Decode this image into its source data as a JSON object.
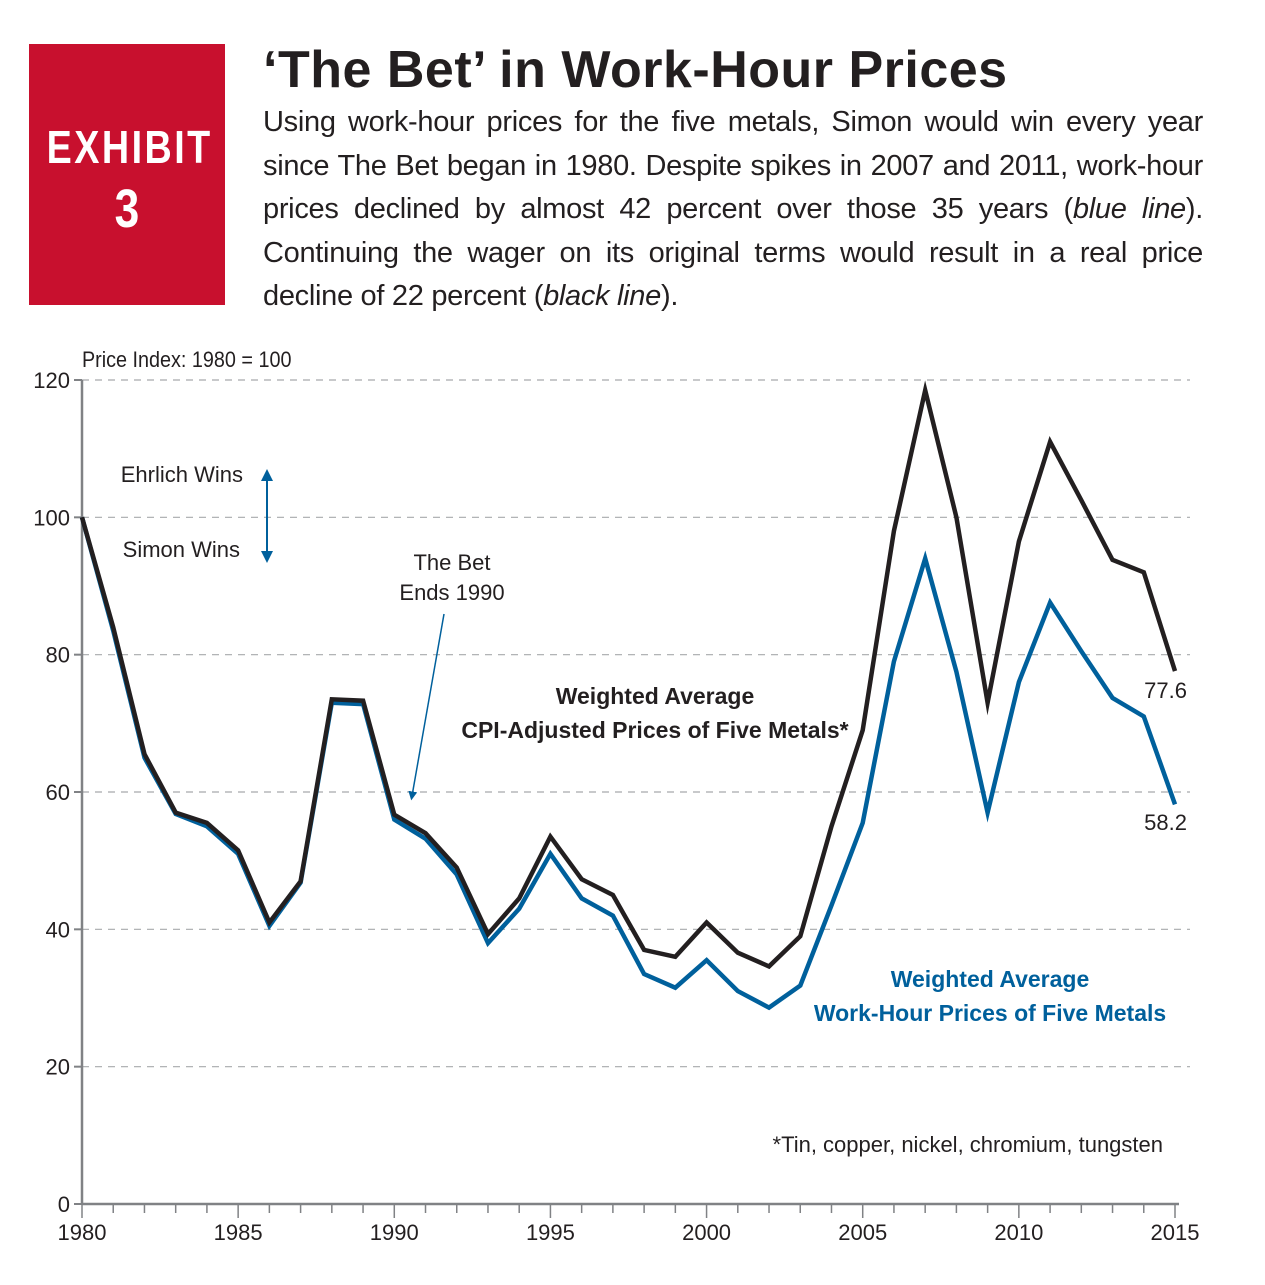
{
  "exhibit": {
    "word": "EXHIBIT",
    "number": "3"
  },
  "title": "‘The Bet’ in Work-Hour Prices",
  "description": {
    "part1": "Using work-hour prices for the five metals, Simon would win every year since The Bet began in 1980. Despite spikes in 2007 and 2011, work-hour prices declined by almost 42 percent over those 35 years (",
    "em1": "blue line",
    "part2": "). Continuing the wager on its original terms would result in a real price decline of 22 percent (",
    "em2": "black line",
    "part3": ")."
  },
  "colors": {
    "badge": "#c8102e",
    "black_line": "#231f20",
    "blue_line": "#00609c",
    "grid": "#a7a9ac",
    "axis": "#808285"
  },
  "chart_data": {
    "type": "line",
    "ylabel": "Price Index: 1980 = 100",
    "xlim": [
      1980,
      2015
    ],
    "ylim": [
      0,
      120
    ],
    "grid": true,
    "x_ticks": [
      1980,
      1985,
      1990,
      1995,
      2000,
      2005,
      2010,
      2015
    ],
    "y_ticks": [
      0,
      20,
      40,
      60,
      80,
      100,
      120
    ],
    "x": [
      1980,
      1981,
      1982,
      1983,
      1984,
      1985,
      1986,
      1987,
      1988,
      1989,
      1990,
      1991,
      1992,
      1993,
      1994,
      1995,
      1996,
      1997,
      1998,
      1999,
      2000,
      2001,
      2002,
      2003,
      2004,
      2005,
      2006,
      2007,
      2008,
      2009,
      2010,
      2011,
      2012,
      2013,
      2014,
      2015
    ],
    "series": [
      {
        "name": "Weighted Average CPI-Adjusted Prices of Five Metals*",
        "label_line1": "Weighted Average",
        "label_line2": "CPI-Adjusted Prices of Five Metals*",
        "color": "#231f20",
        "values": [
          100,
          84,
          65.5,
          57,
          55.5,
          51.5,
          41,
          47,
          73.5,
          73.3,
          56.7,
          54,
          49,
          39.3,
          44.5,
          53.5,
          47.3,
          45,
          37,
          36,
          41,
          36.6,
          34.6,
          39,
          55,
          69,
          98,
          118.5,
          100,
          73,
          96.5,
          111,
          102.5,
          93.8,
          92,
          77.6
        ]
      },
      {
        "name": "Weighted Average Work-Hour Prices of Five Metals",
        "label_line1": "Weighted Average",
        "label_line2": "Work-Hour Prices of Five Metals",
        "color": "#00609c",
        "values": [
          100,
          83.5,
          65,
          56.8,
          55,
          51,
          40.5,
          46.8,
          73,
          72.8,
          56,
          53.2,
          48,
          38,
          43,
          51,
          44.5,
          42,
          33.5,
          31.5,
          35.5,
          31,
          28.6,
          31.8,
          43.5,
          55.5,
          79,
          94,
          77.5,
          57,
          76,
          87.6,
          80.5,
          73.7,
          71,
          58.2
        ]
      }
    ],
    "annotations": {
      "end_black": "77.6",
      "end_blue": "58.2",
      "ehrlich": "Ehrlich Wins",
      "simon": "Simon Wins",
      "bet_ends_line1": "The Bet",
      "bet_ends_line2": "Ends 1990",
      "footnote": "*Tin, copper, nickel, chromium, tungsten"
    }
  }
}
